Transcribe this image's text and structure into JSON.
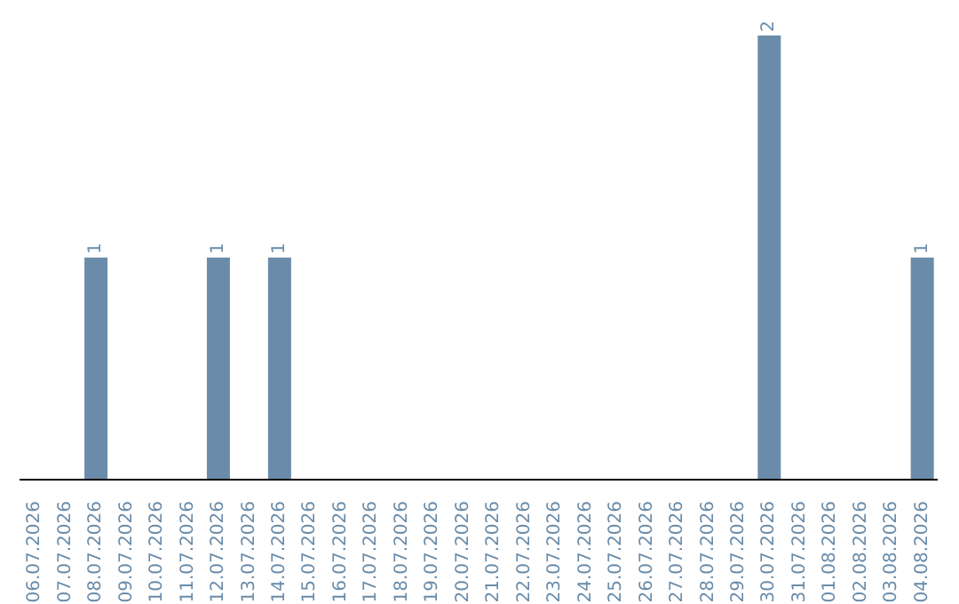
{
  "chart_data": {
    "type": "bar",
    "categories": [
      "06.07.2026",
      "07.07.2026",
      "08.07.2026",
      "09.07.2026",
      "10.07.2026",
      "11.07.2026",
      "12.07.2026",
      "13.07.2026",
      "14.07.2026",
      "15.07.2026",
      "16.07.2026",
      "17.07.2026",
      "18.07.2026",
      "19.07.2026",
      "20.07.2026",
      "21.07.2026",
      "22.07.2026",
      "23.07.2026",
      "24.07.2026",
      "25.07.2026",
      "26.07.2026",
      "27.07.2026",
      "28.07.2026",
      "29.07.2026",
      "30.07.2026",
      "31.07.2026",
      "01.08.2026",
      "02.08.2026",
      "03.08.2026",
      "04.08.2026"
    ],
    "values": [
      0,
      0,
      1,
      0,
      0,
      0,
      1,
      0,
      1,
      0,
      0,
      0,
      0,
      0,
      0,
      0,
      0,
      0,
      0,
      0,
      0,
      0,
      0,
      0,
      2,
      0,
      0,
      0,
      0,
      1
    ],
    "value_labels": [
      null,
      null,
      "1",
      null,
      null,
      null,
      "1",
      null,
      "1",
      null,
      null,
      null,
      null,
      null,
      null,
      null,
      null,
      null,
      null,
      null,
      null,
      null,
      null,
      null,
      "2",
      null,
      null,
      null,
      null,
      "1"
    ],
    "color": "#6a8caa",
    "grid": false,
    "legend": false,
    "tick_labels": "x"
  }
}
